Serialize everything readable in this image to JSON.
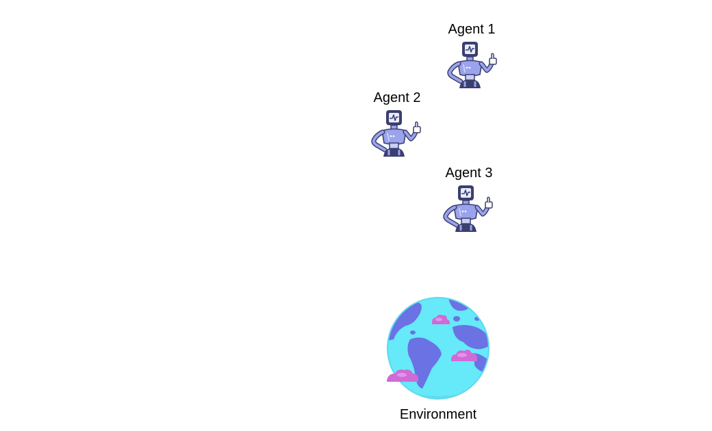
{
  "agents": [
    {
      "label": "Agent 1"
    },
    {
      "label": "Agent 2"
    },
    {
      "label": "Agent 3"
    }
  ],
  "environment": {
    "label": "Environment"
  },
  "colors": {
    "robot_body": "#9aa3ec",
    "robot_dark": "#3b3f6e",
    "robot_highlight": "#c9cef8",
    "globe_ocean": "#66e9f8",
    "globe_land": "#6a72e4",
    "cloud": "#d06ad6"
  },
  "icons": {
    "agent": "robot-icon",
    "environment": "globe-icon"
  }
}
